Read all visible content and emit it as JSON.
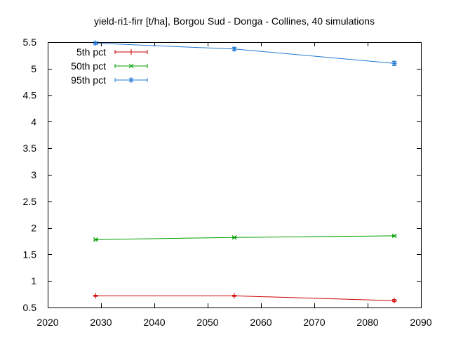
{
  "chart_data": {
    "type": "line",
    "title": "yield-ri1-firr [t/ha], Borgou Sud - Donga - Collines, 40 simulations",
    "xlabel": "",
    "ylabel": "",
    "xlim": [
      2020,
      2090
    ],
    "ylim": [
      0.5,
      5.5
    ],
    "xticks": [
      2020,
      2030,
      2040,
      2050,
      2060,
      2070,
      2080,
      2090
    ],
    "yticks": [
      0.5,
      1,
      1.5,
      2,
      2.5,
      3,
      3.5,
      4,
      4.5,
      5,
      5.5
    ],
    "ytick_labels": [
      "0.5",
      "1",
      "1.5",
      "2",
      "2.5",
      "3",
      "3.5",
      "4",
      "4.5",
      "5",
      "5.5"
    ],
    "grid": false,
    "legend_position": "top-left",
    "x": [
      2029,
      2055,
      2085
    ],
    "series": [
      {
        "name": "5th pct",
        "color": "#cc0000",
        "marker": "plus",
        "values": [
          0.72,
          0.72,
          0.63
        ],
        "err": [
          0.01,
          0.01,
          0.02
        ]
      },
      {
        "name": "50th pct",
        "color": "#00a000",
        "marker": "cross",
        "values": [
          1.78,
          1.82,
          1.85
        ],
        "err": [
          0.01,
          0.01,
          0.01
        ]
      },
      {
        "name": "95th pct",
        "color": "#1f78d0",
        "marker": "star",
        "values": [
          5.48,
          5.37,
          5.1
        ],
        "err": [
          0.02,
          0.03,
          0.04
        ]
      }
    ]
  }
}
